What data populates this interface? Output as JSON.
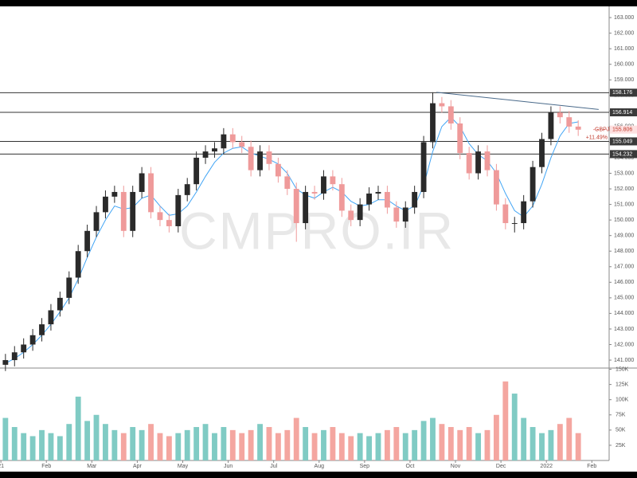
{
  "chart_data": {
    "type": "candlestick",
    "watermark": "CMPRO.IR",
    "symbol": "GBPJPY",
    "last_price": 155.806,
    "change": "+11.49%",
    "x": [
      0.1,
      0.3,
      0.5,
      0.7,
      0.9,
      1.1,
      1.3,
      1.5,
      1.7,
      1.9,
      2.1,
      2.3,
      2.5,
      2.7,
      2.9,
      3.1,
      3.3,
      3.5,
      3.7,
      3.9,
      4.1,
      4.3,
      4.5,
      4.7,
      4.9,
      5.1,
      5.3,
      5.5,
      5.7,
      5.9,
      6.1,
      6.3,
      6.5,
      6.7,
      6.9,
      7.1,
      7.3,
      7.5,
      7.7,
      7.9,
      8.1,
      8.3,
      8.5,
      8.7,
      8.9,
      9.1,
      9.3,
      9.5,
      9.7,
      9.9,
      10.1,
      10.3,
      10.5,
      10.7,
      10.9,
      11.1,
      11.3,
      11.5,
      11.7,
      11.9,
      12.1,
      12.3,
      12.5,
      12.7
    ],
    "open": [
      140.7,
      141.0,
      141.5,
      142.0,
      142.6,
      143.3,
      144.2,
      145.0,
      146.3,
      148.0,
      149.3,
      150.5,
      151.5,
      151.8,
      149.3,
      151.8,
      153.0,
      150.5,
      150.0,
      149.6,
      151.6,
      152.3,
      154.0,
      154.4,
      154.6,
      155.5,
      155.0,
      154.7,
      153.2,
      154.4,
      153.6,
      152.8,
      152.0,
      149.8,
      151.8,
      151.7,
      152.8,
      152.3,
      150.6,
      150.0,
      151.0,
      151.7,
      151.8,
      150.8,
      149.9,
      150.8,
      151.8,
      155.0,
      157.5,
      157.3,
      156.2,
      154.3,
      153.0,
      154.4,
      153.2,
      151.0,
      149.8,
      149.8,
      151.2,
      153.4,
      155.2,
      156.9,
      156.6,
      156.0
    ],
    "high": [
      141.4,
      141.9,
      142.4,
      143.0,
      143.7,
      144.6,
      145.4,
      146.7,
      148.4,
      149.7,
      150.9,
      151.9,
      152.2,
      152.2,
      152.2,
      153.4,
      153.4,
      150.9,
      150.4,
      152.0,
      152.7,
      154.4,
      154.8,
      155.0,
      155.9,
      155.9,
      155.4,
      155.1,
      154.8,
      154.8,
      154.0,
      153.2,
      152.4,
      152.2,
      152.2,
      153.2,
      153.2,
      152.7,
      151.0,
      151.4,
      152.1,
      152.2,
      152.2,
      151.2,
      151.2,
      152.2,
      155.4,
      158.2,
      157.9,
      157.7,
      156.6,
      154.7,
      154.8,
      154.8,
      153.6,
      151.4,
      150.2,
      151.6,
      153.8,
      155.6,
      157.3,
      157.3,
      157.0,
      156.4
    ],
    "low": [
      140.3,
      140.6,
      141.1,
      141.6,
      142.2,
      142.9,
      143.8,
      144.6,
      145.9,
      147.6,
      148.9,
      150.1,
      151.1,
      148.9,
      148.9,
      151.4,
      150.1,
      149.6,
      149.2,
      149.2,
      151.2,
      151.9,
      153.6,
      154.0,
      154.2,
      154.6,
      154.3,
      152.8,
      152.8,
      153.2,
      152.4,
      151.6,
      148.6,
      149.4,
      151.3,
      151.3,
      151.9,
      150.2,
      149.6,
      149.6,
      150.6,
      151.3,
      150.4,
      149.5,
      149.5,
      150.4,
      151.4,
      154.6,
      156.9,
      155.8,
      153.9,
      152.6,
      152.6,
      152.8,
      150.6,
      149.4,
      149.2,
      149.4,
      150.8,
      153.0,
      154.8,
      156.2,
      155.6,
      155.4
    ],
    "close": [
      141.0,
      141.5,
      142.0,
      142.6,
      143.3,
      144.2,
      145.0,
      146.3,
      148.0,
      149.3,
      150.5,
      151.5,
      151.8,
      149.3,
      151.8,
      153.0,
      150.5,
      150.0,
      149.6,
      151.6,
      152.3,
      154.0,
      154.4,
      154.6,
      155.5,
      155.0,
      154.7,
      153.2,
      154.4,
      153.6,
      152.8,
      152.0,
      149.8,
      151.8,
      151.7,
      152.8,
      152.3,
      150.6,
      150.0,
      151.0,
      151.7,
      151.8,
      150.8,
      149.9,
      150.8,
      151.8,
      155.0,
      157.5,
      157.3,
      156.2,
      154.3,
      153.0,
      154.4,
      153.2,
      151.0,
      149.8,
      149.8,
      151.2,
      153.4,
      155.2,
      156.9,
      156.6,
      156.0,
      155.8
    ],
    "volume": [
      70000,
      55000,
      45000,
      40000,
      50000,
      45000,
      40000,
      60000,
      105000,
      65000,
      75000,
      60000,
      50000,
      45000,
      55000,
      50000,
      60000,
      45000,
      40000,
      45000,
      50000,
      55000,
      60000,
      45000,
      55000,
      50000,
      45000,
      50000,
      60000,
      55000,
      45000,
      50000,
      70000,
      55000,
      45000,
      50000,
      55000,
      45000,
      40000,
      45000,
      40000,
      45000,
      50000,
      55000,
      45000,
      50000,
      65000,
      70000,
      60000,
      55000,
      50000,
      55000,
      45000,
      50000,
      75000,
      130000,
      110000,
      70000,
      55000,
      45000,
      50000,
      60000,
      70000,
      45000
    ],
    "ma": [
      140.8,
      141.1,
      141.5,
      142.0,
      142.6,
      143.3,
      144.1,
      145.0,
      146.2,
      147.6,
      148.9,
      150.0,
      150.9,
      150.7,
      150.8,
      151.4,
      151.6,
      150.9,
      150.3,
      150.4,
      150.9,
      151.8,
      152.8,
      153.7,
      154.3,
      154.6,
      154.7,
      154.3,
      154.1,
      153.9,
      153.6,
      153.0,
      152.0,
      151.6,
      151.4,
      151.8,
      152.1,
      151.8,
      151.2,
      150.9,
      151.0,
      151.3,
      151.3,
      150.9,
      150.6,
      150.9,
      152.2,
      154.4,
      156.0,
      156.6,
      156.0,
      154.9,
      154.2,
      153.8,
      153.0,
      151.7,
      150.6,
      150.2,
      150.9,
      152.3,
      154.0,
      155.4,
      156.2,
      156.3
    ],
    "ma_color": "#42a5f5",
    "up_color": "#2a2a2a",
    "down_color": "#ef9a9a",
    "volume_up_color": "#80cbc4",
    "volume_down_color": "#f4a6a0",
    "levels": [
      158.176,
      156.914,
      155.049,
      154.232
    ],
    "trendline": {
      "x": [
        9.58,
        13.15
      ],
      "y": [
        158.2,
        157.1
      ]
    },
    "xlim": [
      -0.02,
      13.38
    ],
    "xticks": [
      {
        "value": 0,
        "label": "21"
      },
      {
        "value": 1,
        "label": "Feb"
      },
      {
        "value": 2,
        "label": "Mar"
      },
      {
        "value": 3,
        "label": "Apr"
      },
      {
        "value": 4,
        "label": "May"
      },
      {
        "value": 5,
        "label": "Jun"
      },
      {
        "value": 6,
        "label": "Jul"
      },
      {
        "value": 7,
        "label": "Aug"
      },
      {
        "value": 8,
        "label": "Sep"
      },
      {
        "value": 9,
        "label": "Oct"
      },
      {
        "value": 10,
        "label": "Nov"
      },
      {
        "value": 11,
        "label": "Dec"
      },
      {
        "value": 12,
        "label": "2022"
      },
      {
        "value": 13,
        "label": "Feb"
      }
    ],
    "ylim": [
      140.49,
      163.72
    ],
    "yticks": [
      {
        "value": 141,
        "label": "141.000"
      },
      {
        "value": 142,
        "label": "142.000"
      },
      {
        "value": 143,
        "label": "143.000"
      },
      {
        "value": 144,
        "label": "144.000"
      },
      {
        "value": 145,
        "label": "145.000"
      },
      {
        "value": 146,
        "label": "146.000"
      },
      {
        "value": 147,
        "label": "147.000"
      },
      {
        "value": 148,
        "label": "148.000"
      },
      {
        "value": 149,
        "label": "149.000"
      },
      {
        "value": 150,
        "label": "150.000"
      },
      {
        "value": 151,
        "label": "151.000"
      },
      {
        "value": 152,
        "label": "152.000"
      },
      {
        "value": 153,
        "label": "153.000"
      },
      {
        "value": 154,
        "label": "154.000"
      },
      {
        "value": 155,
        "label": "155.000"
      },
      {
        "value": 156,
        "label": "156.000"
      },
      {
        "value": 157,
        "label": "157.000"
      },
      {
        "value": 158,
        "label": "158.000"
      },
      {
        "value": 159,
        "label": "159.000"
      },
      {
        "value": 160,
        "label": "160.000"
      },
      {
        "value": 161,
        "label": "161.000"
      },
      {
        "value": 162,
        "label": "162.000"
      },
      {
        "value": 163,
        "label": "163.000"
      }
    ],
    "y2lim": [
      0,
      152000
    ],
    "y2ticks": [
      {
        "value": 25000,
        "label": "25K"
      },
      {
        "value": 50000,
        "label": "50K"
      },
      {
        "value": 75000,
        "label": "75K"
      },
      {
        "value": 100000,
        "label": "100K"
      },
      {
        "value": 125000,
        "label": "125K"
      },
      {
        "value": 150000,
        "label": "150K"
      }
    ]
  }
}
